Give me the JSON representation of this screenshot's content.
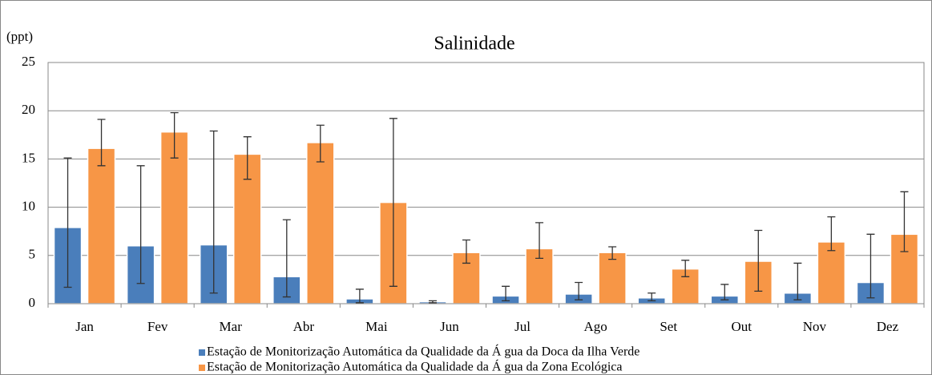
{
  "chart_data": {
    "type": "bar",
    "title": "Salinidade",
    "y_label": "(ppt)",
    "categories": [
      "Jan",
      "Fev",
      "Mar",
      "Abr",
      "Mai",
      "Jun",
      "Jul",
      "Ago",
      "Set",
      "Out",
      "Nov",
      "Dez"
    ],
    "series": [
      {
        "name": "Estação de Monitorização Automática da Qualidade da Á gua da Doca da Ilha Verde",
        "color": "#4a7ebb",
        "values": [
          7.9,
          6.0,
          6.1,
          2.8,
          0.5,
          0.2,
          0.8,
          1.0,
          0.6,
          0.8,
          1.1,
          2.2
        ],
        "error_minus": [
          6.2,
          3.9,
          5.0,
          2.1,
          0.4,
          0.1,
          0.5,
          0.6,
          0.3,
          0.4,
          0.7,
          1.6
        ],
        "error_plus": [
          7.2,
          8.3,
          11.8,
          5.9,
          1.0,
          0.1,
          1.0,
          1.2,
          0.5,
          1.2,
          3.1,
          5.0
        ]
      },
      {
        "name": "Estação de Monitorização Automática da Qualidade da Á gua da Zona Ecológica",
        "color": "#f79646",
        "values": [
          16.1,
          17.8,
          15.5,
          16.7,
          10.5,
          5.3,
          5.7,
          5.3,
          3.6,
          4.4,
          6.4,
          7.2
        ],
        "error_minus": [
          1.8,
          2.7,
          2.6,
          2.0,
          8.7,
          1.1,
          1.0,
          0.7,
          0.8,
          3.1,
          0.9,
          1.8
        ],
        "error_plus": [
          3.0,
          2.0,
          1.8,
          1.8,
          8.7,
          1.3,
          2.7,
          0.6,
          0.9,
          3.2,
          2.6,
          4.4
        ]
      }
    ],
    "ylim": [
      0,
      25
    ],
    "yticks": [
      0,
      5,
      10,
      15,
      20,
      25
    ],
    "grid": true,
    "legend": "bottom"
  }
}
